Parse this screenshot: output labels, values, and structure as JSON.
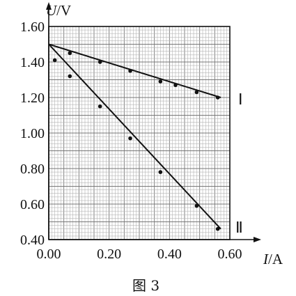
{
  "chart_data": {
    "type": "line",
    "xlabel": {
      "symbol": "I",
      "unit": "/A"
    },
    "ylabel": {
      "symbol": "U",
      "unit": "/V"
    },
    "xlim": [
      0,
      0.6
    ],
    "ylim": [
      0.4,
      1.6
    ],
    "x_ticks": [
      "0.00",
      "0.20",
      "0.40",
      "0.60"
    ],
    "y_ticks": [
      "0.40",
      "0.60",
      "0.80",
      "1.00",
      "1.20",
      "1.40",
      "1.60"
    ],
    "grid": true,
    "series": [
      {
        "name": "Ⅰ",
        "line": [
          [
            0,
            1.5
          ],
          [
            0.57,
            1.2
          ]
        ],
        "points": [
          [
            0.07,
            1.45
          ],
          [
            0.17,
            1.4
          ],
          [
            0.27,
            1.35
          ],
          [
            0.37,
            1.29
          ],
          [
            0.42,
            1.27
          ],
          [
            0.49,
            1.23
          ],
          [
            0.56,
            1.2
          ]
        ]
      },
      {
        "name": "Ⅱ",
        "line": [
          [
            0,
            1.5
          ],
          [
            0.57,
            0.46
          ]
        ],
        "points": [
          [
            0.02,
            1.41
          ],
          [
            0.07,
            1.32
          ],
          [
            0.17,
            1.15
          ],
          [
            0.27,
            0.97
          ],
          [
            0.37,
            0.78
          ],
          [
            0.49,
            0.59
          ],
          [
            0.56,
            0.46
          ]
        ]
      }
    ]
  },
  "caption": "图 3"
}
